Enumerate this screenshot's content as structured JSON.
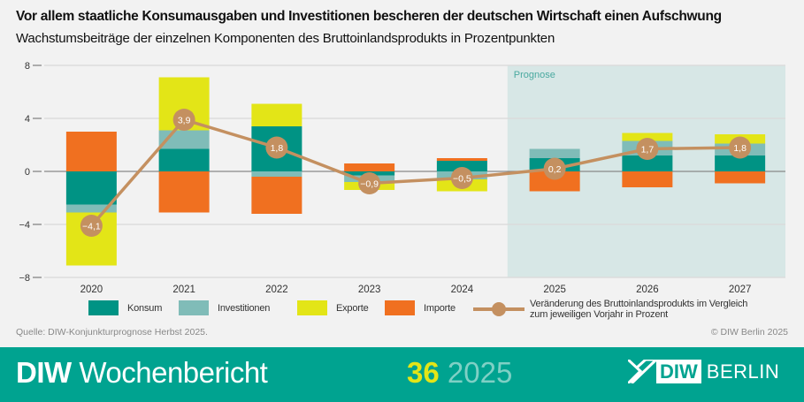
{
  "title": "Vor allem staatliche Konsumausgaben und Investitionen bescheren der deutschen Wirtschaft einen Aufschwung",
  "subtitle": "Wachstumsbeiträge der einzelnen Komponenten des Bruttoinlandsprodukts in Prozentpunkten",
  "chart_data": {
    "type": "bar",
    "stacked": true,
    "categories": [
      "2020",
      "2021",
      "2022",
      "2023",
      "2024",
      "2025",
      "2026",
      "2027"
    ],
    "ylim": [
      -8,
      8
    ],
    "yticks": [
      "8",
      "4",
      "0",
      "−4",
      "−8"
    ],
    "ytick_values": [
      8,
      4,
      0,
      -4,
      -8
    ],
    "grid": true,
    "forecast_label": "Prognose",
    "forecast_from": "2025",
    "series": [
      {
        "name": "Konsum",
        "color": "#009384",
        "values": [
          -2.5,
          1.7,
          3.4,
          -0.3,
          0.8,
          1.0,
          1.2,
          1.2
        ]
      },
      {
        "name": "Investitionen",
        "color": "#80bcb8",
        "values": [
          -0.6,
          1.4,
          -0.4,
          -0.5,
          -0.6,
          0.7,
          1.1,
          0.9
        ]
      },
      {
        "name": "Exporte",
        "color": "#e3e517",
        "values": [
          -4.0,
          4.0,
          1.7,
          -0.6,
          -0.9,
          0,
          0.6,
          0.7
        ]
      },
      {
        "name": "Importe",
        "color": "#f07020",
        "values": [
          3.0,
          -3.1,
          -2.8,
          0.6,
          0.2,
          -1.5,
          -1.2,
          -0.9
        ]
      }
    ],
    "line": {
      "name": "Veränderung des Bruttoinlandsprodukts im Vergleich zum jeweiligen Vorjahr in Prozent",
      "color": "#c49060",
      "values": [
        -4.1,
        3.9,
        1.8,
        -0.9,
        -0.5,
        0.2,
        1.7,
        1.8
      ],
      "labels": [
        "−4,1",
        "3,9",
        "1,8",
        "−0,9",
        "−0,5",
        "0,2",
        "1,7",
        "1,8"
      ]
    },
    "legend_position": "bottom"
  },
  "legend": {
    "konsum": "Konsum",
    "investitionen": "Investitionen",
    "exporte": "Exporte",
    "importe": "Importe",
    "line_l1": "Veränderung des Bruttoinlandsprodukts im Vergleich",
    "line_l2": "zum jeweiligen Vorjahr in Prozent"
  },
  "source": "Quelle: DIW-Konjunkturprognose Herbst 2025.",
  "copyright": "© DIW Berlin 2025",
  "footer": {
    "brand_bold": "DIW",
    "brand": "Wochenbericht",
    "issue": "36",
    "year": "2025",
    "logo_diw": "DIW",
    "logo_berlin": "BERLIN"
  }
}
